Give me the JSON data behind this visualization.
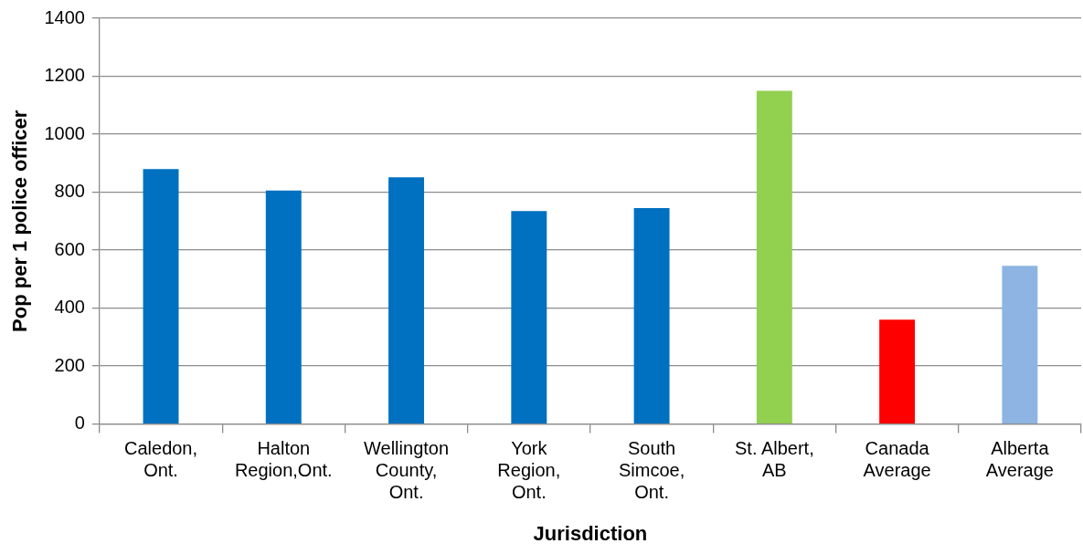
{
  "chart_data": {
    "type": "bar",
    "xlabel": "Jurisdiction",
    "ylabel": "Pop per 1 police officer",
    "categories": [
      "Caledon, Ont.",
      "Halton Region,Ont.",
      "Wellington County, Ont.",
      "York Region, Ont.",
      "South Simcoe, Ont.",
      "St. Albert, AB",
      "Canada Average",
      "Alberta Average"
    ],
    "values": [
      880,
      806,
      851,
      735,
      745,
      1150,
      360,
      546
    ],
    "colors": [
      "#0070c0",
      "#0070c0",
      "#0070c0",
      "#0070c0",
      "#0070c0",
      "#92d050",
      "#ff0000",
      "#8db4e2"
    ],
    "ylim": [
      0,
      1400
    ],
    "yticks": [
      0,
      200,
      400,
      600,
      800,
      1000,
      1200,
      1400
    ],
    "grid": "y",
    "legend": false
  }
}
